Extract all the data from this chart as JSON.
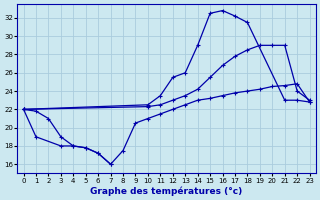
{
  "title": "Graphe des températures (°c)",
  "bg_color": "#cce8f0",
  "grid_color": "#aaccdd",
  "line_color": "#0000aa",
  "xlim": [
    -0.5,
    23.5
  ],
  "ylim": [
    15.0,
    33.5
  ],
  "yticks": [
    16,
    18,
    20,
    22,
    24,
    26,
    28,
    30,
    32
  ],
  "xticks": [
    0,
    1,
    2,
    3,
    4,
    5,
    6,
    7,
    8,
    9,
    10,
    11,
    12,
    13,
    14,
    15,
    16,
    17,
    18,
    19,
    20,
    21,
    22,
    23
  ],
  "line_top_x": [
    0,
    10,
    11,
    12,
    13,
    14,
    15,
    16,
    17,
    18,
    21,
    22,
    23
  ],
  "line_top_y": [
    22.0,
    22.5,
    23.5,
    25.5,
    26.0,
    29.0,
    32.5,
    32.8,
    32.2,
    31.5,
    23.0,
    23.0,
    22.8
  ],
  "line_mid_x": [
    0,
    10,
    11,
    12,
    13,
    14,
    15,
    16,
    17,
    18,
    19,
    20,
    21,
    22,
    23
  ],
  "line_mid_y": [
    22.0,
    22.3,
    22.5,
    23.0,
    23.5,
    24.2,
    25.5,
    26.8,
    27.8,
    28.5,
    29.0,
    29.0,
    29.0,
    24.0,
    23.0
  ],
  "line_bot_x": [
    0,
    1,
    2,
    3,
    4,
    5,
    6,
    7,
    8,
    9,
    10,
    11,
    12,
    13,
    14,
    15,
    16,
    17,
    18,
    19,
    20,
    21,
    22,
    23
  ],
  "line_bot_y": [
    22.0,
    21.8,
    21.0,
    19.0,
    18.0,
    17.8,
    17.2,
    16.0,
    17.5,
    20.5,
    21.0,
    21.5,
    22.0,
    22.5,
    23.0,
    23.2,
    23.5,
    23.8,
    24.0,
    24.2,
    24.5,
    24.6,
    24.8,
    22.8
  ],
  "line_min_x": [
    0,
    1,
    3,
    4,
    5,
    6,
    7
  ],
  "line_min_y": [
    22.0,
    19.0,
    18.0,
    18.0,
    17.8,
    17.2,
    16.0
  ]
}
